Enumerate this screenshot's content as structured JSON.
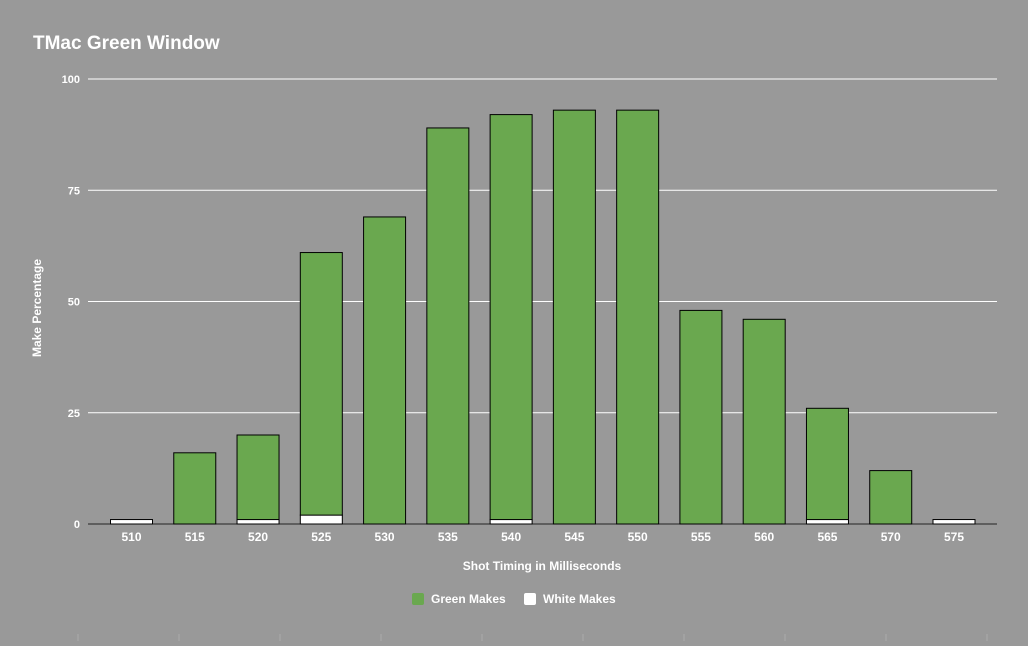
{
  "chart_data": {
    "type": "bar",
    "stacked": true,
    "title": "TMac Green Window",
    "xlabel": "Shot Timing in Milliseconds",
    "ylabel": "Make Percentage",
    "ylim": [
      0,
      100
    ],
    "yticks": [
      0,
      25,
      50,
      75,
      100
    ],
    "grid": true,
    "legend": "bottom",
    "categories": [
      "510",
      "515",
      "520",
      "525",
      "530",
      "535",
      "540",
      "545",
      "550",
      "555",
      "560",
      "565",
      "570",
      "575"
    ],
    "series": [
      {
        "name": "White Makes",
        "color": "#ffffff",
        "values": [
          1,
          0,
          1,
          2,
          0,
          0,
          1,
          0,
          0,
          0,
          0,
          1,
          0,
          1
        ]
      },
      {
        "name": "Green Makes",
        "color": "#6aa84f",
        "values": [
          0,
          16,
          19,
          59,
          69,
          89,
          91,
          93,
          93,
          48,
          46,
          25,
          12,
          0
        ]
      }
    ]
  }
}
